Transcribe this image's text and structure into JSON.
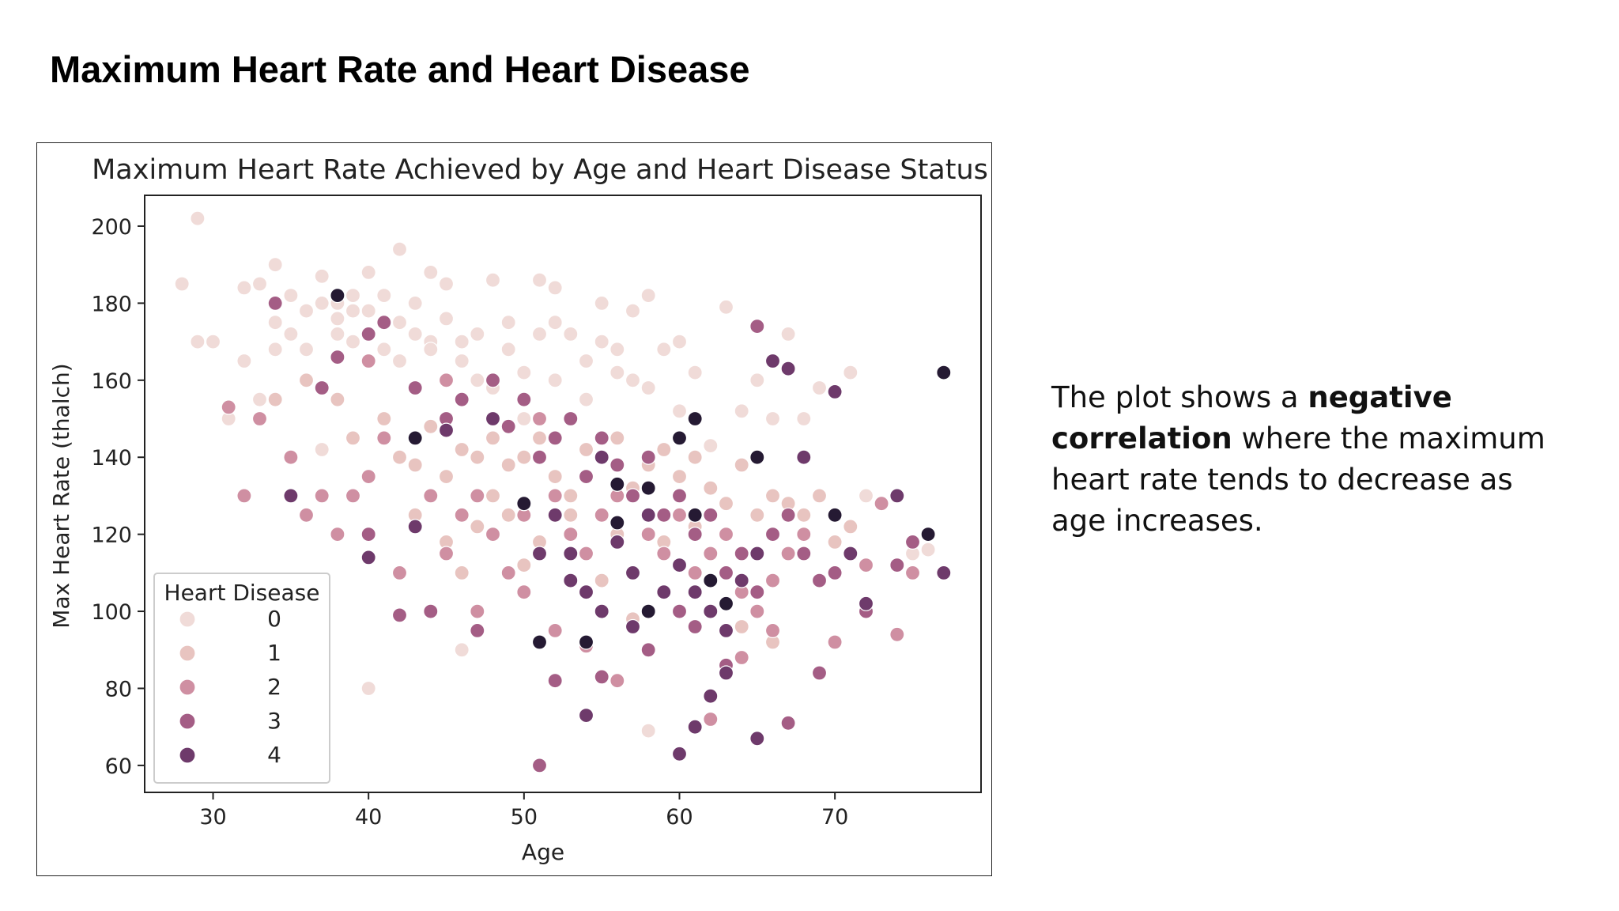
{
  "slide": {
    "title": "Maximum Heart Rate and Heart Disease"
  },
  "caption": {
    "part1": "The plot shows a ",
    "bold": "negative correlation",
    "part2": " where the maximum heart rate tends to decrease as age increases."
  },
  "chart_data": {
    "type": "scatter",
    "title": "Maximum Heart Rate Achieved by Age and Heart Disease Status",
    "xlabel": "Age",
    "ylabel": "Max Heart Rate (thalch)",
    "xlim": [
      25.6,
      79.4
    ],
    "ylim": [
      53,
      208
    ],
    "xticks": [
      30,
      40,
      50,
      60,
      70
    ],
    "yticks": [
      60,
      80,
      100,
      120,
      140,
      160,
      180,
      200
    ],
    "grid": false,
    "legend": {
      "title": "Heart Disease",
      "placement": "lower-left",
      "entries": [
        "0",
        "1",
        "2",
        "3",
        "4"
      ]
    },
    "colors": [
      "#f0dbd8",
      "#e8c4c0",
      "#cf8fa2",
      "#a45d85",
      "#6e3a6b",
      "#251a33"
    ],
    "series": [
      {
        "name": "0",
        "points": [
          [
            28,
            185
          ],
          [
            29,
            170
          ],
          [
            29,
            202
          ],
          [
            30,
            170
          ],
          [
            31,
            150
          ],
          [
            32,
            165
          ],
          [
            32,
            184
          ],
          [
            33,
            185
          ],
          [
            34,
            175
          ],
          [
            34,
            168
          ],
          [
            34,
            190
          ],
          [
            35,
            172
          ],
          [
            35,
            182
          ],
          [
            36,
            178
          ],
          [
            36,
            168
          ],
          [
            37,
            187
          ],
          [
            37,
            180
          ],
          [
            38,
            172
          ],
          [
            38,
            180
          ],
          [
            38,
            176
          ],
          [
            39,
            182
          ],
          [
            39,
            178
          ],
          [
            39,
            170
          ],
          [
            40,
            178
          ],
          [
            40,
            188
          ],
          [
            41,
            168
          ],
          [
            41,
            182
          ],
          [
            42,
            175
          ],
          [
            42,
            194
          ],
          [
            42,
            165
          ],
          [
            43,
            172
          ],
          [
            43,
            180
          ],
          [
            44,
            170
          ],
          [
            44,
            168
          ],
          [
            44,
            188
          ],
          [
            45,
            176
          ],
          [
            45,
            185
          ],
          [
            46,
            170
          ],
          [
            46,
            165
          ],
          [
            47,
            172
          ],
          [
            47,
            160
          ],
          [
            48,
            186
          ],
          [
            48,
            158
          ],
          [
            49,
            168
          ],
          [
            49,
            175
          ],
          [
            50,
            162
          ],
          [
            50,
            150
          ],
          [
            51,
            186
          ],
          [
            51,
            172
          ],
          [
            52,
            175
          ],
          [
            52,
            184
          ],
          [
            52,
            160
          ],
          [
            53,
            172
          ],
          [
            54,
            165
          ],
          [
            54,
            155
          ],
          [
            55,
            170
          ],
          [
            55,
            180
          ],
          [
            56,
            168
          ],
          [
            56,
            162
          ],
          [
            57,
            160
          ],
          [
            57,
            178
          ],
          [
            58,
            182
          ],
          [
            58,
            158
          ],
          [
            59,
            168
          ],
          [
            60,
            170
          ],
          [
            60,
            152
          ],
          [
            61,
            150
          ],
          [
            61,
            162
          ],
          [
            62,
            143
          ],
          [
            63,
            179
          ],
          [
            64,
            152
          ],
          [
            65,
            160
          ],
          [
            66,
            150
          ],
          [
            67,
            172
          ],
          [
            68,
            150
          ],
          [
            69,
            158
          ],
          [
            71,
            162
          ],
          [
            72,
            130
          ],
          [
            75,
            115
          ],
          [
            76,
            116
          ],
          [
            40,
            80
          ],
          [
            46,
            90
          ],
          [
            58,
            69
          ],
          [
            33,
            155
          ],
          [
            31,
            153
          ],
          [
            37,
            142
          ]
        ]
      },
      {
        "name": "1",
        "points": [
          [
            34,
            155
          ],
          [
            36,
            160
          ],
          [
            38,
            155
          ],
          [
            39,
            145
          ],
          [
            41,
            150
          ],
          [
            42,
            140
          ],
          [
            43,
            138
          ],
          [
            44,
            148
          ],
          [
            45,
            135
          ],
          [
            46,
            142
          ],
          [
            47,
            140
          ],
          [
            48,
            145
          ],
          [
            48,
            130
          ],
          [
            49,
            138
          ],
          [
            50,
            140
          ],
          [
            51,
            145
          ],
          [
            52,
            135
          ],
          [
            53,
            130
          ],
          [
            54,
            142
          ],
          [
            55,
            140
          ],
          [
            56,
            145
          ],
          [
            57,
            132
          ],
          [
            58,
            138
          ],
          [
            59,
            142
          ],
          [
            60,
            135
          ],
          [
            61,
            140
          ],
          [
            62,
            132
          ],
          [
            63,
            128
          ],
          [
            64,
            138
          ],
          [
            65,
            125
          ],
          [
            66,
            130
          ],
          [
            67,
            128
          ],
          [
            68,
            125
          ],
          [
            69,
            130
          ],
          [
            70,
            118
          ],
          [
            71,
            122
          ],
          [
            43,
            125
          ],
          [
            45,
            118
          ],
          [
            47,
            122
          ],
          [
            49,
            125
          ],
          [
            51,
            118
          ],
          [
            53,
            125
          ],
          [
            56,
            120
          ],
          [
            59,
            118
          ],
          [
            61,
            122
          ],
          [
            46,
            110
          ],
          [
            50,
            112
          ],
          [
            55,
            108
          ],
          [
            62,
            100
          ],
          [
            64,
            96
          ],
          [
            66,
            92
          ],
          [
            57,
            98
          ]
        ]
      },
      {
        "name": "2",
        "points": [
          [
            31,
            153
          ],
          [
            32,
            130
          ],
          [
            33,
            150
          ],
          [
            35,
            140
          ],
          [
            36,
            125
          ],
          [
            37,
            130
          ],
          [
            38,
            120
          ],
          [
            39,
            130
          ],
          [
            40,
            135
          ],
          [
            41,
            145
          ],
          [
            42,
            110
          ],
          [
            44,
            130
          ],
          [
            45,
            115
          ],
          [
            46,
            125
          ],
          [
            47,
            130
          ],
          [
            48,
            120
          ],
          [
            49,
            110
          ],
          [
            50,
            125
          ],
          [
            51,
            150
          ],
          [
            52,
            130
          ],
          [
            53,
            120
          ],
          [
            54,
            115
          ],
          [
            55,
            125
          ],
          [
            56,
            130
          ],
          [
            57,
            110
          ],
          [
            58,
            120
          ],
          [
            59,
            115
          ],
          [
            60,
            125
          ],
          [
            61,
            110
          ],
          [
            62,
            115
          ],
          [
            63,
            120
          ],
          [
            64,
            105
          ],
          [
            65,
            100
          ],
          [
            66,
            108
          ],
          [
            67,
            115
          ],
          [
            68,
            120
          ],
          [
            70,
            92
          ],
          [
            72,
            112
          ],
          [
            74,
            94
          ],
          [
            75,
            110
          ],
          [
            40,
            165
          ],
          [
            45,
            160
          ],
          [
            52,
            95
          ],
          [
            56,
            82
          ],
          [
            62,
            72
          ],
          [
            64,
            88
          ],
          [
            66,
            95
          ],
          [
            70,
            125
          ],
          [
            73,
            128
          ],
          [
            50,
            105
          ],
          [
            47,
            100
          ],
          [
            54,
            91
          ]
        ]
      },
      {
        "name": "3",
        "points": [
          [
            34,
            180
          ],
          [
            37,
            158
          ],
          [
            38,
            166
          ],
          [
            40,
            172
          ],
          [
            41,
            175
          ],
          [
            43,
            158
          ],
          [
            45,
            150
          ],
          [
            46,
            155
          ],
          [
            48,
            160
          ],
          [
            49,
            148
          ],
          [
            50,
            155
          ],
          [
            51,
            140
          ],
          [
            52,
            145
          ],
          [
            53,
            150
          ],
          [
            54,
            135
          ],
          [
            55,
            145
          ],
          [
            56,
            138
          ],
          [
            57,
            130
          ],
          [
            58,
            140
          ],
          [
            59,
            125
          ],
          [
            60,
            130
          ],
          [
            61,
            120
          ],
          [
            62,
            125
          ],
          [
            63,
            110
          ],
          [
            64,
            115
          ],
          [
            65,
            105
          ],
          [
            66,
            120
          ],
          [
            67,
            125
          ],
          [
            68,
            115
          ],
          [
            69,
            108
          ],
          [
            70,
            110
          ],
          [
            72,
            100
          ],
          [
            74,
            112
          ],
          [
            75,
            118
          ],
          [
            42,
            99
          ],
          [
            44,
            100
          ],
          [
            52,
            82
          ],
          [
            55,
            83
          ],
          [
            58,
            90
          ],
          [
            61,
            96
          ],
          [
            63,
            86
          ],
          [
            67,
            71
          ],
          [
            69,
            84
          ],
          [
            51,
            60
          ],
          [
            40,
            120
          ],
          [
            47,
            95
          ],
          [
            60,
            100
          ],
          [
            65,
            174
          ]
        ]
      },
      {
        "name": "4",
        "points": [
          [
            35,
            130
          ],
          [
            40,
            114
          ],
          [
            43,
            122
          ],
          [
            45,
            147
          ],
          [
            48,
            150
          ],
          [
            50,
            128
          ],
          [
            51,
            115
          ],
          [
            52,
            125
          ],
          [
            53,
            115
          ],
          [
            54,
            105
          ],
          [
            55,
            140
          ],
          [
            56,
            118
          ],
          [
            57,
            110
          ],
          [
            58,
            125
          ],
          [
            59,
            105
          ],
          [
            60,
            112
          ],
          [
            61,
            105
          ],
          [
            62,
            100
          ],
          [
            63,
            95
          ],
          [
            64,
            108
          ],
          [
            65,
            115
          ],
          [
            66,
            165
          ],
          [
            67,
            163
          ],
          [
            68,
            140
          ],
          [
            70,
            157
          ],
          [
            71,
            115
          ],
          [
            72,
            102
          ],
          [
            74,
            130
          ],
          [
            77,
            110
          ],
          [
            54,
            73
          ],
          [
            60,
            63
          ],
          [
            61,
            70
          ],
          [
            62,
            78
          ],
          [
            63,
            84
          ],
          [
            65,
            67
          ],
          [
            55,
            100
          ],
          [
            53,
            108
          ],
          [
            57,
            96
          ]
        ]
      },
      {
        "name": "",
        "points": [
          [
            38,
            182
          ],
          [
            43,
            145
          ],
          [
            50,
            128
          ],
          [
            51,
            92
          ],
          [
            54,
            92
          ],
          [
            56,
            123
          ],
          [
            58,
            100
          ],
          [
            58,
            132
          ],
          [
            61,
            150
          ],
          [
            61,
            125
          ],
          [
            62,
            108
          ],
          [
            63,
            102
          ],
          [
            65,
            140
          ],
          [
            70,
            125
          ],
          [
            76,
            120
          ],
          [
            77,
            162
          ],
          [
            56,
            133
          ],
          [
            60,
            145
          ]
        ]
      }
    ]
  }
}
